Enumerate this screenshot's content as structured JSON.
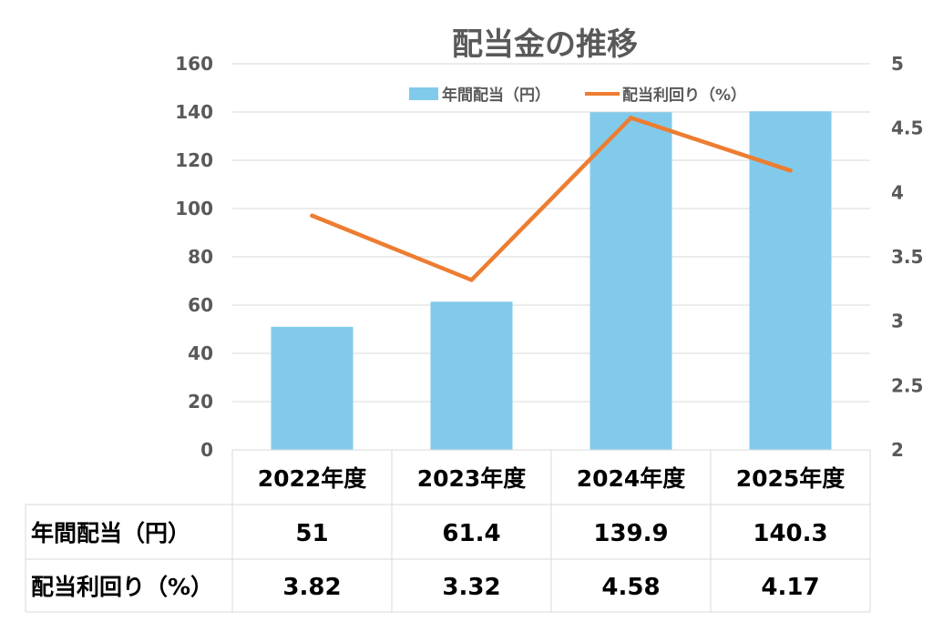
{
  "chart_data": {
    "type": "bar+line",
    "title": "配当金の推移",
    "categories": [
      "2022年度",
      "2023年度",
      "2024年度",
      "2025年度"
    ],
    "series": [
      {
        "name": "年間配当（円）",
        "type": "bar",
        "axis": "left",
        "color": "#82CAEB",
        "values": [
          51,
          61.4,
          139.9,
          140.3
        ],
        "value_labels": [
          "51",
          "61.4",
          "139.9",
          "140.3"
        ]
      },
      {
        "name": "配当利回り（%）",
        "type": "line",
        "axis": "right",
        "color": "#ED7D31",
        "values": [
          3.82,
          3.32,
          4.58,
          4.17
        ],
        "value_labels": [
          "3.82",
          "3.32",
          "4.58",
          "4.17"
        ]
      }
    ],
    "y_left": {
      "min": 0,
      "max": 160,
      "step": 20,
      "tick_labels": [
        "0",
        "20",
        "40",
        "60",
        "80",
        "100",
        "120",
        "140",
        "160"
      ]
    },
    "y_right": {
      "min": 2,
      "max": 5,
      "step": 0.5,
      "tick_labels": [
        "2",
        "2.5",
        "3",
        "3.5",
        "4",
        "4.5",
        "5"
      ]
    },
    "legend": "top-center",
    "grid": true,
    "data_table": true,
    "row_labels": [
      "年間配当（円）",
      "配当利回り（%）"
    ]
  }
}
